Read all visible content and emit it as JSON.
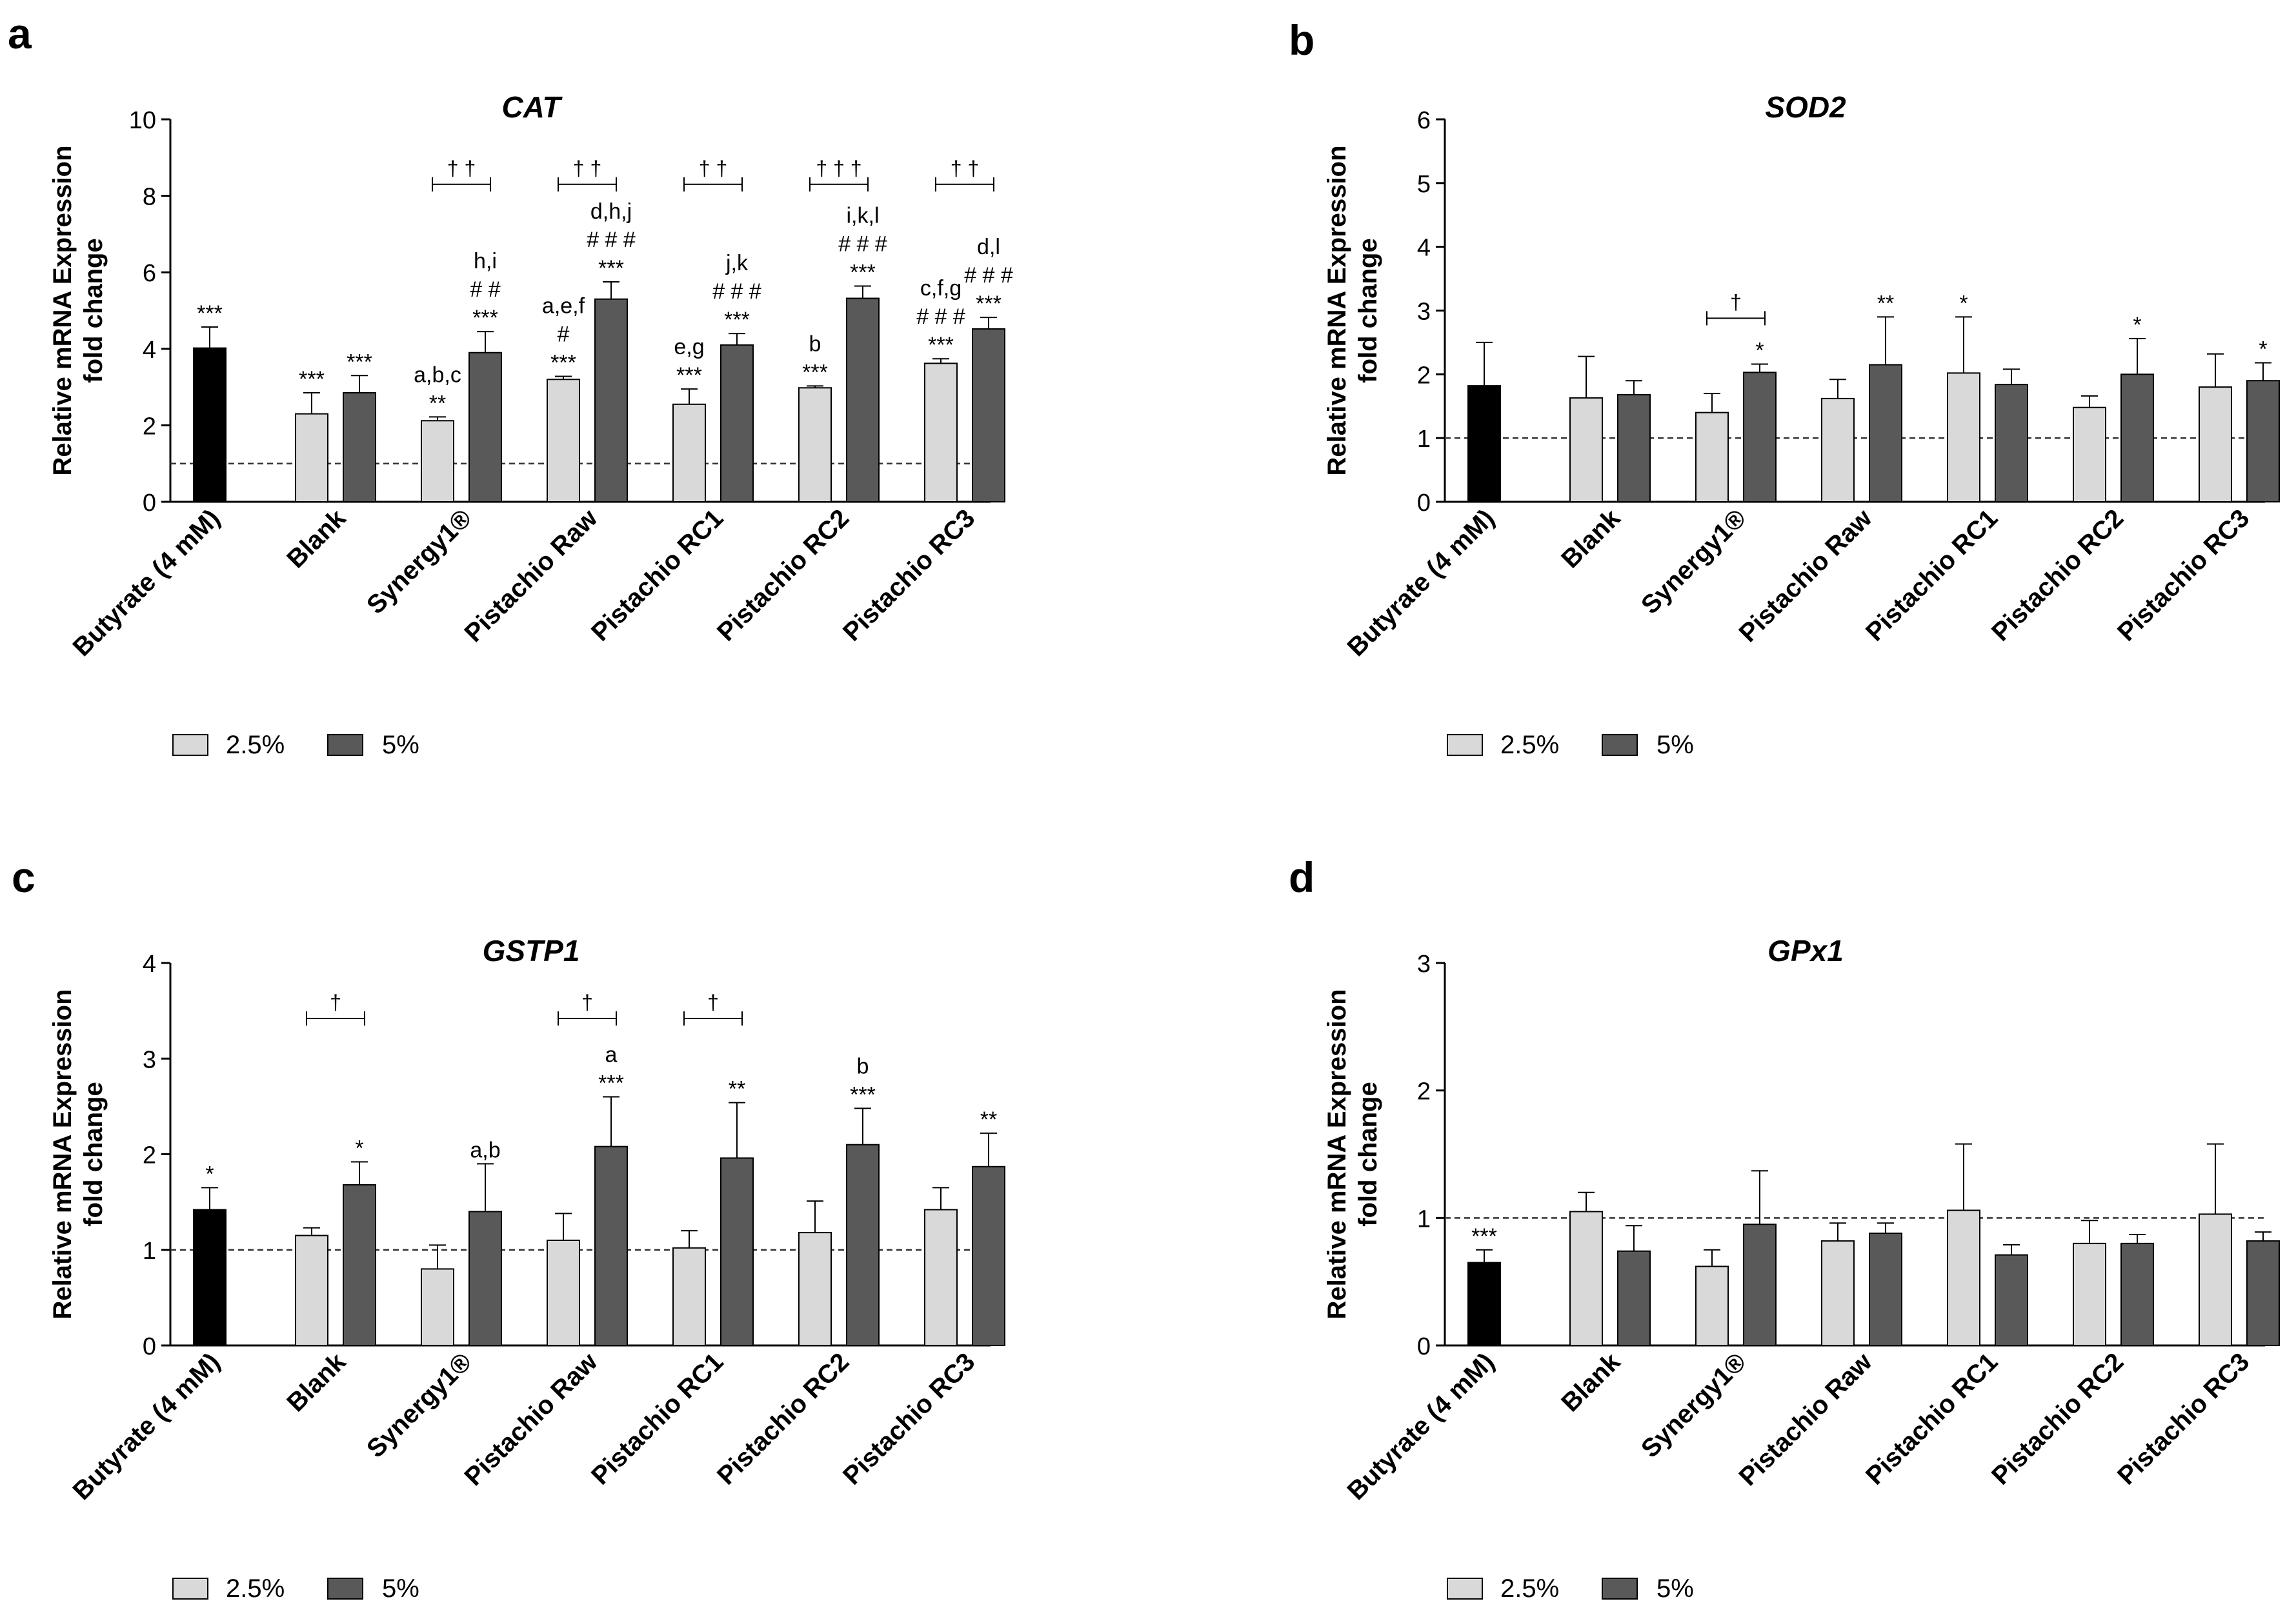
{
  "figure": {
    "categories": [
      "Butyrate (4 mM)",
      "Blank",
      "Synergy1®",
      "Pistachio Raw",
      "Pistachio RC1",
      "Pistachio RC2",
      "Pistachio RC3"
    ],
    "ylabel_line1": "Relative mRNA Expression",
    "ylabel_line2": "fold change",
    "legend": [
      "2.5%",
      "5%"
    ],
    "colors": {
      "butyrate": "#000000",
      "c25": "#d9d9d9",
      "c5": "#595959",
      "axis": "#000000"
    }
  },
  "chart_data": [
    {
      "panel_label": "a",
      "title": "CAT",
      "type": "bar",
      "ylim": [
        0,
        10
      ],
      "yticks": [
        0,
        2,
        4,
        6,
        8,
        10
      ],
      "reference_line": 1,
      "categories": [
        "Butyrate (4 mM)",
        "Blank",
        "Synergy1®",
        "Pistachio Raw",
        "Pistachio RC1",
        "Pistachio RC2",
        "Pistachio RC3"
      ],
      "series": [
        {
          "name": "Butyrate (4 mM)",
          "values": [
            4.02,
            null,
            null,
            null,
            null,
            null,
            null
          ],
          "errors": [
            0.55,
            null,
            null,
            null,
            null,
            null,
            null
          ],
          "labels": [
            [
              "***"
            ],
            null,
            null,
            null,
            null,
            null,
            null
          ]
        },
        {
          "name": "2.5%",
          "values": [
            null,
            2.3,
            2.12,
            3.2,
            2.55,
            2.98,
            3.62
          ],
          "errors": [
            null,
            0.55,
            0.1,
            0.08,
            0.4,
            0.05,
            0.12
          ],
          "labels": [
            null,
            [
              "***"
            ],
            [
              "a,b,c",
              "**"
            ],
            [
              "a,e,f",
              "#",
              "***"
            ],
            [
              "e,g",
              "***"
            ],
            [
              "b",
              "***"
            ],
            [
              "c,f,g",
              "# # #",
              "***"
            ]
          ]
        },
        {
          "name": "5%",
          "values": [
            null,
            2.85,
            3.9,
            5.3,
            4.1,
            5.32,
            4.52
          ],
          "errors": [
            null,
            0.45,
            0.55,
            0.45,
            0.3,
            0.32,
            0.3
          ],
          "labels": [
            null,
            [
              "***"
            ],
            [
              "h,i",
              "# #",
              "***"
            ],
            [
              "d,h,j",
              "# # #",
              "***"
            ],
            [
              "j,k",
              "# # #",
              "***"
            ],
            [
              "i,k,l",
              "# # #",
              "***"
            ],
            [
              "d,l",
              "# # #",
              "***"
            ]
          ]
        }
      ],
      "brackets": [
        {
          "category": 2,
          "y": 8.3,
          "label": "† †"
        },
        {
          "category": 3,
          "y": 8.3,
          "label": "† †"
        },
        {
          "category": 4,
          "y": 8.3,
          "label": "† †"
        },
        {
          "category": 5,
          "y": 8.3,
          "label": "† † †"
        },
        {
          "category": 6,
          "y": 8.3,
          "label": "† †"
        }
      ],
      "legend": [
        "2.5%",
        "5%"
      ]
    },
    {
      "panel_label": "b",
      "title": "SOD2",
      "type": "bar",
      "ylim": [
        0,
        6
      ],
      "yticks": [
        0,
        1,
        2,
        3,
        4,
        5,
        6
      ],
      "reference_line": 1,
      "categories": [
        "Butyrate (4 mM)",
        "Blank",
        "Synergy1®",
        "Pistachio Raw",
        "Pistachio RC1",
        "Pistachio RC2",
        "Pistachio RC3"
      ],
      "series": [
        {
          "name": "Butyrate (4 mM)",
          "values": [
            1.82,
            null,
            null,
            null,
            null,
            null,
            null
          ],
          "errors": [
            0.68,
            null,
            null,
            null,
            null,
            null,
            null
          ],
          "labels": [
            null,
            null,
            null,
            null,
            null,
            null,
            null
          ]
        },
        {
          "name": "2.5%",
          "values": [
            null,
            1.63,
            1.4,
            1.62,
            2.02,
            1.48,
            1.8
          ],
          "errors": [
            null,
            0.65,
            0.3,
            0.3,
            0.88,
            0.18,
            0.52
          ],
          "labels": [
            null,
            null,
            null,
            null,
            [
              "*"
            ],
            null,
            null
          ]
        },
        {
          "name": "5%",
          "values": [
            null,
            1.68,
            2.03,
            2.15,
            1.84,
            2.0,
            1.9
          ],
          "errors": [
            null,
            0.22,
            0.13,
            0.75,
            0.24,
            0.56,
            0.28
          ],
          "labels": [
            null,
            null,
            [
              "*"
            ],
            [
              "**"
            ],
            null,
            [
              "*"
            ],
            [
              "*"
            ]
          ]
        }
      ],
      "brackets": [
        {
          "category": 2,
          "y": 2.88,
          "label": "†"
        }
      ],
      "legend": [
        "2.5%",
        "5%"
      ]
    },
    {
      "panel_label": "c",
      "title": "GSTP1",
      "type": "bar",
      "ylim": [
        0,
        4
      ],
      "yticks": [
        0,
        1,
        2,
        3,
        4
      ],
      "reference_line": 1,
      "categories": [
        "Butyrate (4 mM)",
        "Blank",
        "Synergy1®",
        "Pistachio Raw",
        "Pistachio RC1",
        "Pistachio RC2",
        "Pistachio RC3"
      ],
      "series": [
        {
          "name": "Butyrate (4 mM)",
          "values": [
            1.42,
            null,
            null,
            null,
            null,
            null,
            null
          ],
          "errors": [
            0.23,
            null,
            null,
            null,
            null,
            null,
            null
          ],
          "labels": [
            [
              "*"
            ],
            null,
            null,
            null,
            null,
            null,
            null
          ]
        },
        {
          "name": "2.5%",
          "values": [
            null,
            1.15,
            0.8,
            1.1,
            1.02,
            1.18,
            1.42
          ],
          "errors": [
            null,
            0.08,
            0.25,
            0.28,
            0.18,
            0.33,
            0.23
          ],
          "labels": [
            null,
            null,
            null,
            null,
            null,
            null,
            null
          ]
        },
        {
          "name": "5%",
          "values": [
            null,
            1.68,
            1.4,
            2.08,
            1.96,
            2.1,
            1.87
          ],
          "errors": [
            null,
            0.24,
            0.5,
            0.52,
            0.58,
            0.38,
            0.35
          ],
          "labels": [
            null,
            [
              "*"
            ],
            [
              "a,b"
            ],
            [
              "a",
              "***"
            ],
            [
              "**"
            ],
            [
              "b",
              "***"
            ],
            [
              "**"
            ]
          ]
        }
      ],
      "brackets": [
        {
          "category": 1,
          "y": 3.42,
          "label": "†"
        },
        {
          "category": 3,
          "y": 3.42,
          "label": "†"
        },
        {
          "category": 4,
          "y": 3.42,
          "label": "†"
        }
      ],
      "legend": [
        "2.5%",
        "5%"
      ]
    },
    {
      "panel_label": "d",
      "title": "GPx1",
      "type": "bar",
      "ylim": [
        0,
        3
      ],
      "yticks": [
        0,
        1,
        2,
        3
      ],
      "reference_line": 1,
      "categories": [
        "Butyrate (4 mM)",
        "Blank",
        "Synergy1®",
        "Pistachio Raw",
        "Pistachio RC1",
        "Pistachio RC2",
        "Pistachio RC3"
      ],
      "series": [
        {
          "name": "Butyrate (4 mM)",
          "values": [
            0.65,
            null,
            null,
            null,
            null,
            null,
            null
          ],
          "errors": [
            0.1,
            null,
            null,
            null,
            null,
            null,
            null
          ],
          "labels": [
            [
              "***"
            ],
            null,
            null,
            null,
            null,
            null,
            null
          ]
        },
        {
          "name": "2.5%",
          "values": [
            null,
            1.05,
            0.62,
            0.82,
            1.06,
            0.8,
            1.03
          ],
          "errors": [
            null,
            0.15,
            0.13,
            0.14,
            0.52,
            0.18,
            0.55
          ],
          "labels": [
            null,
            null,
            null,
            null,
            null,
            null,
            null
          ]
        },
        {
          "name": "5%",
          "values": [
            null,
            0.74,
            0.95,
            0.88,
            0.71,
            0.8,
            0.82
          ],
          "errors": [
            null,
            0.2,
            0.42,
            0.08,
            0.08,
            0.07,
            0.07
          ],
          "labels": [
            null,
            null,
            null,
            null,
            null,
            null,
            null
          ]
        }
      ],
      "brackets": [],
      "legend": [
        "2.5%",
        "5%"
      ]
    }
  ]
}
